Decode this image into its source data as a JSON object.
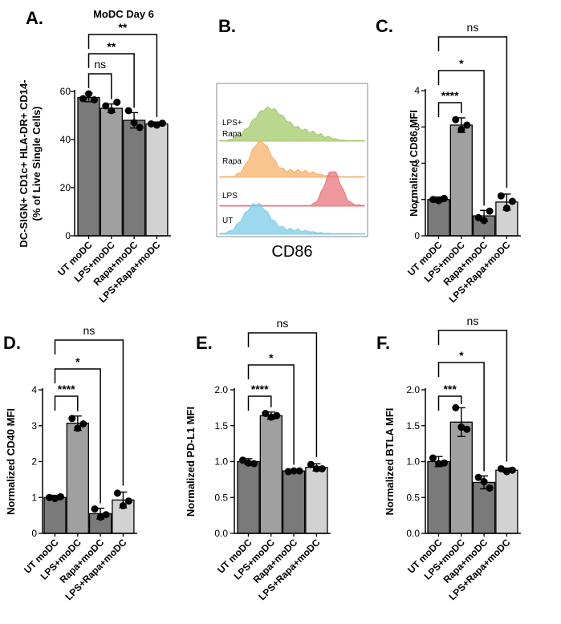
{
  "chart_data": [
    {
      "panel": "A.",
      "type": "bar",
      "title": "MoDC Day 6",
      "ylabel_line1": "DC-SIGN+ CD1c+ HLA-DR+ CD14-",
      "ylabel_line2": "(% of Live Single Cells)",
      "categories": [
        "UT moDC",
        "LPS+moDC",
        "Rapa+moDC",
        "LPS+Rapa+moDC"
      ],
      "values": [
        57.5,
        53,
        48,
        46.5
      ],
      "errors": [
        1.8,
        1.8,
        3.2,
        0.8
      ],
      "points": [
        [
          57,
          59,
          56.5
        ],
        [
          54,
          52,
          55.5
        ],
        [
          52,
          47,
          45
        ],
        [
          46.5,
          46,
          46.8
        ]
      ],
      "ylim": [
        0,
        60
      ],
      "yticks": [
        "0",
        "20",
        "40",
        "60"
      ],
      "comparisons": [
        {
          "from": 0,
          "to": 1,
          "label": "ns"
        },
        {
          "from": 0,
          "to": 2,
          "label": "**"
        },
        {
          "from": 0,
          "to": 3,
          "label": "**"
        }
      ]
    },
    {
      "panel": "B.",
      "type": "histogram",
      "xlabel": "CD86",
      "rows": [
        {
          "label": "LPS+\nRapa",
          "label_lines": [
            "LPS+",
            "Rapa"
          ],
          "color": "#a3c96b"
        },
        {
          "label": "Rapa",
          "label_lines": [
            "Rapa"
          ],
          "color": "#f5b16b"
        },
        {
          "label": "LPS",
          "label_lines": [
            "LPS"
          ],
          "color": "#e8747c"
        },
        {
          "label": "UT",
          "label_lines": [
            "UT"
          ],
          "color": "#7ccbea"
        }
      ]
    },
    {
      "panel": "C.",
      "type": "bar",
      "ylabel": "Normalized CD86 MFI",
      "categories": [
        "UT moDC",
        "LPS+moDC",
        "Rapa+moDC",
        "LPS+Rapa+moDC"
      ],
      "values": [
        1.0,
        3.05,
        0.55,
        0.93
      ],
      "errors": [
        0.07,
        0.2,
        0.15,
        0.22
      ],
      "points": [
        [
          1.0,
          0.97,
          1.03
        ],
        [
          3.2,
          2.93,
          3.05
        ],
        [
          0.5,
          0.42,
          0.68
        ],
        [
          1.1,
          0.76,
          0.95
        ]
      ],
      "ylim": [
        0,
        4
      ],
      "yticks": [
        "0",
        "1",
        "2",
        "3",
        "4"
      ],
      "comparisons": [
        {
          "from": 0,
          "to": 1,
          "label": "****"
        },
        {
          "from": 0,
          "to": 2,
          "label": "*"
        },
        {
          "from": 0,
          "to": 3,
          "label": "ns"
        }
      ]
    },
    {
      "panel": "D.",
      "type": "bar",
      "ylabel": "Normalized CD40 MFI",
      "categories": [
        "UT moDC",
        "LPS+moDC",
        "Rapa+moDC",
        "LPS+Rapa+moDC"
      ],
      "values": [
        1.0,
        3.07,
        0.55,
        0.93
      ],
      "errors": [
        0.06,
        0.2,
        0.15,
        0.22
      ],
      "points": [
        [
          1.0,
          0.97,
          1.02
        ],
        [
          3.2,
          2.93,
          3.05
        ],
        [
          0.68,
          0.45,
          0.52
        ],
        [
          1.12,
          0.77,
          0.9
        ]
      ],
      "ylim": [
        0,
        4
      ],
      "yticks": [
        "0",
        "1",
        "2",
        "3",
        "4"
      ],
      "comparisons": [
        {
          "from": 0,
          "to": 1,
          "label": "****"
        },
        {
          "from": 0,
          "to": 2,
          "label": "*"
        },
        {
          "from": 0,
          "to": 3,
          "label": "ns"
        }
      ]
    },
    {
      "panel": "E.",
      "type": "bar",
      "ylabel": "Normalized PD-L1 MFI",
      "categories": [
        "UT moDC",
        "LPS+moDC",
        "Rapa+moDC",
        "LPS+Rapa+moDC"
      ],
      "values": [
        1.0,
        1.64,
        0.87,
        0.92
      ],
      "errors": [
        0.04,
        0.05,
        0.02,
        0.05
      ],
      "points": [
        [
          1.02,
          0.98,
          0.97
        ],
        [
          1.67,
          1.62,
          1.64
        ],
        [
          0.86,
          0.87,
          0.87
        ],
        [
          0.96,
          0.9,
          0.9
        ]
      ],
      "ylim": [
        0,
        2.0
      ],
      "yticks": [
        "0.0",
        "0.5",
        "1.0",
        "1.5",
        "2.0"
      ],
      "comparisons": [
        {
          "from": 0,
          "to": 1,
          "label": "****"
        },
        {
          "from": 0,
          "to": 2,
          "label": "*"
        },
        {
          "from": 0,
          "to": 3,
          "label": "ns"
        }
      ]
    },
    {
      "panel": "F.",
      "type": "bar",
      "ylabel": "Normalized BTLA MFI",
      "categories": [
        "UT moDC",
        "LPS+moDC",
        "Rapa+moDC",
        "LPS+Rapa+moDC"
      ],
      "values": [
        1.0,
        1.55,
        0.71,
        0.88
      ],
      "errors": [
        0.07,
        0.2,
        0.09,
        0.03
      ],
      "points": [
        [
          1.05,
          0.97,
          0.98
        ],
        [
          1.75,
          1.48,
          1.45
        ],
        [
          0.78,
          0.72,
          0.63
        ],
        [
          0.9,
          0.86,
          0.88
        ]
      ],
      "ylim": [
        0,
        2.0
      ],
      "yticks": [
        "0.0",
        "0.5",
        "1.0",
        "1.5",
        "2.0"
      ],
      "comparisons": [
        {
          "from": 0,
          "to": 1,
          "label": "***"
        },
        {
          "from": 0,
          "to": 2,
          "label": "*"
        },
        {
          "from": 0,
          "to": 3,
          "label": "ns"
        }
      ]
    }
  ],
  "colors": {
    "bars": [
      "#7a7a7a",
      "#a0a0a0",
      "#7a7a7a",
      "#d2d2d2"
    ],
    "bar_stroke": "#000000",
    "point": "#000000"
  }
}
